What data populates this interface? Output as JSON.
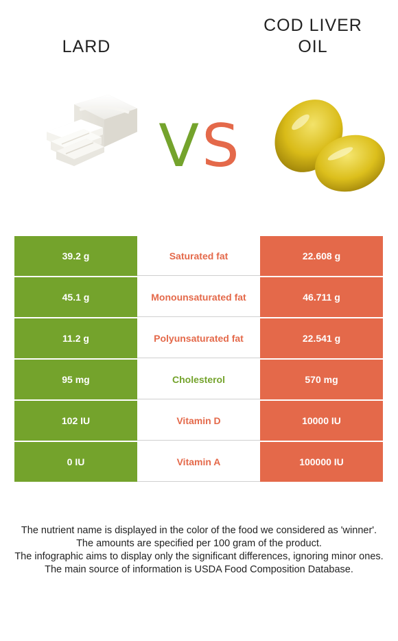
{
  "header": {
    "left_food": "LARD",
    "right_food": "COD LIVER\nOIL",
    "vs_v": "V",
    "vs_s": "S"
  },
  "colors": {
    "left": "#74a32c",
    "right": "#e4694a"
  },
  "images": {
    "left": "lard-image",
    "right": "cod-liver-oil-capsules-image"
  },
  "rows": [
    {
      "left": "39.2 g",
      "nutrient": "Saturated fat",
      "right": "22.608 g",
      "winner": "right"
    },
    {
      "left": "45.1 g",
      "nutrient": "Monounsaturated fat",
      "right": "46.711 g",
      "winner": "right"
    },
    {
      "left": "11.2 g",
      "nutrient": "Polyunsaturated fat",
      "right": "22.541 g",
      "winner": "right"
    },
    {
      "left": "95 mg",
      "nutrient": "Cholesterol",
      "right": "570 mg",
      "winner": "left"
    },
    {
      "left": "102 IU",
      "nutrient": "Vitamin D",
      "right": "10000 IU",
      "winner": "right"
    },
    {
      "left": "0 IU",
      "nutrient": "Vitamin A",
      "right": "100000 IU",
      "winner": "right"
    }
  ],
  "footer": {
    "line1": "The nutrient name is displayed in the color of the food we considered as 'winner'.",
    "line2": "The amounts are specified per 100 gram of the product.",
    "line3": "The infographic aims to display only the significant differences, ignoring minor ones.",
    "line4": "The main source of information is USDA Food Composition Database."
  }
}
